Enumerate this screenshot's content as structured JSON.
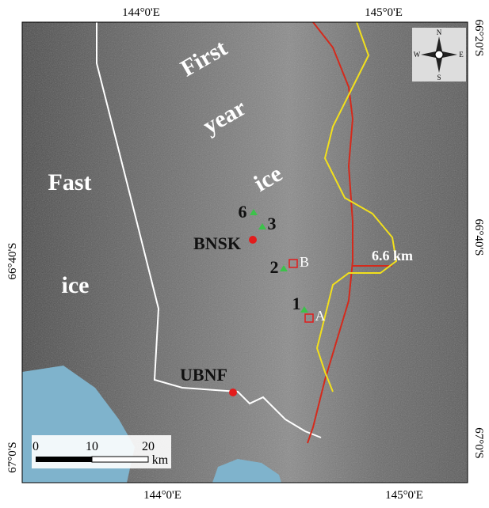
{
  "axes": {
    "top": [
      "144°0'E",
      "145°0'E"
    ],
    "bottom": [
      "144°0'E",
      "145°0'E"
    ],
    "left": [
      "66°40'S",
      "67°0'S"
    ],
    "right": [
      "66°20'S",
      "66°40'S",
      "67°0'S"
    ]
  },
  "labels": {
    "first": "First",
    "year": "year",
    "ice_first": "ice",
    "fast": "Fast",
    "ice_fast": "ice",
    "distance": "6.6 km"
  },
  "stations": {
    "s6": "6",
    "s3": "3",
    "s2": "2",
    "s1": "1",
    "bnsk": "BNSK",
    "ubnf": "UBNF",
    "box_b": "B",
    "box_a": "A"
  },
  "scale_bar": {
    "ticks": [
      "0",
      "10",
      "20"
    ],
    "unit": "km"
  },
  "compass": {
    "n": "N",
    "s": "S",
    "e": "E",
    "w": "W"
  }
}
